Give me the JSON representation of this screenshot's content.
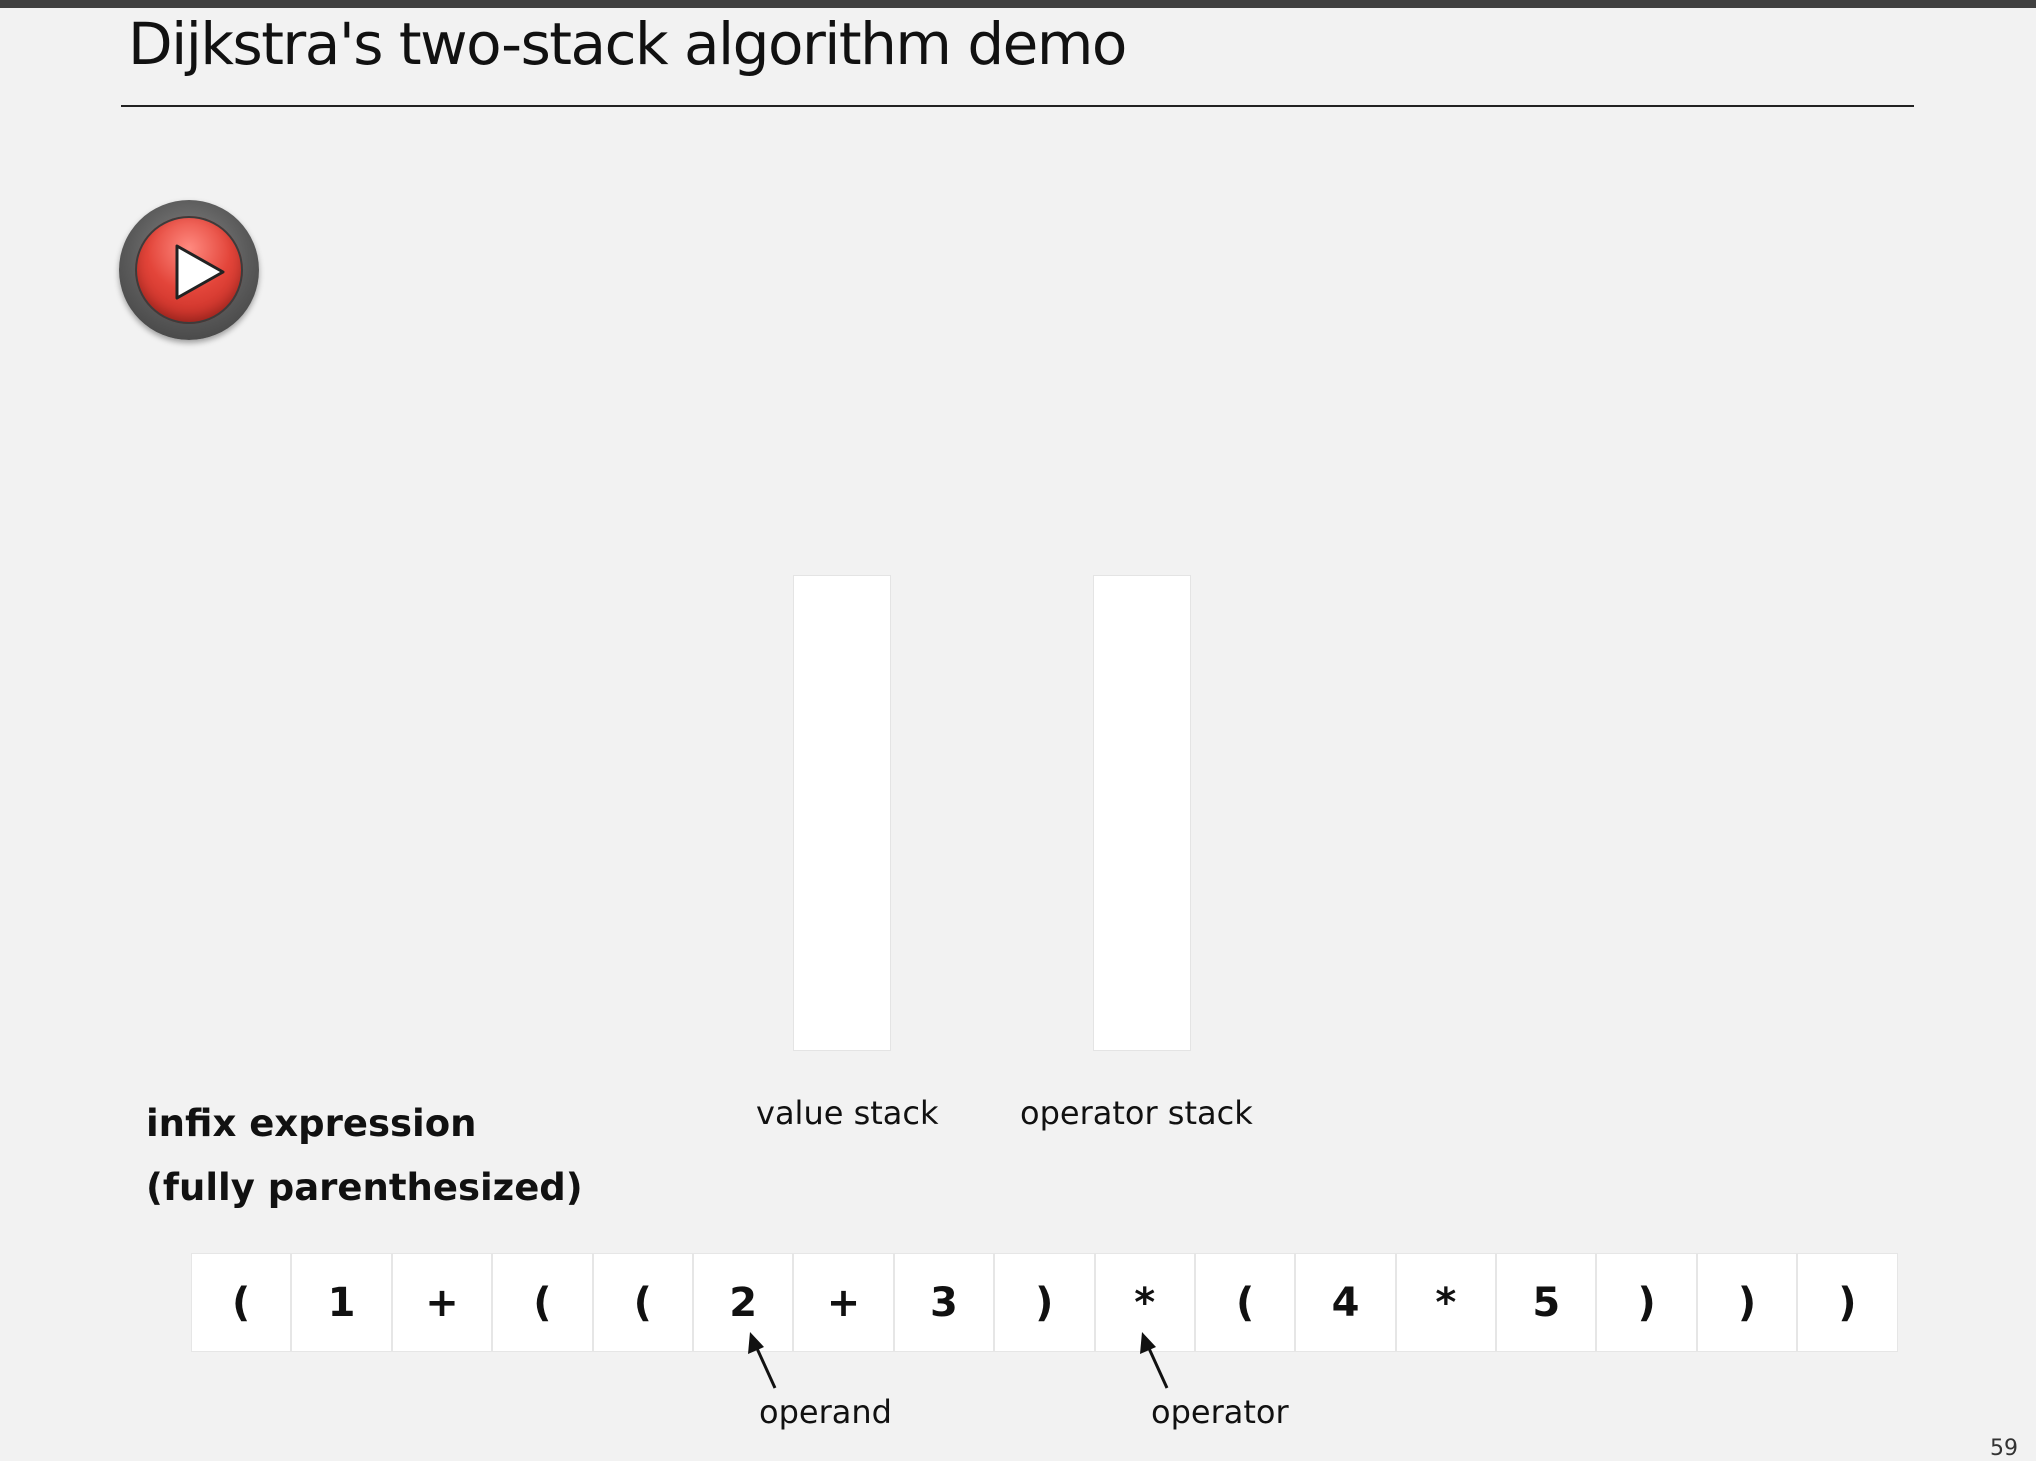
{
  "slide": {
    "title": "Dijkstra's two-stack algorithm demo",
    "page_number": "59"
  },
  "controls": {
    "play_icon": "play-icon",
    "play_color": "#e3453a"
  },
  "stacks": {
    "value_label": "value stack",
    "operator_label": "operator stack"
  },
  "expression": {
    "heading_line1": "infix expression",
    "heading_line2": "(fully parenthesized)",
    "tokens": [
      "(",
      "1",
      "+",
      "(",
      "(",
      "2",
      "+",
      "3",
      ")",
      "*",
      "(",
      "4",
      "*",
      "5",
      ")",
      ")",
      ")"
    ]
  },
  "annotations": {
    "operand_label": "operand",
    "operator_label": "operator"
  }
}
